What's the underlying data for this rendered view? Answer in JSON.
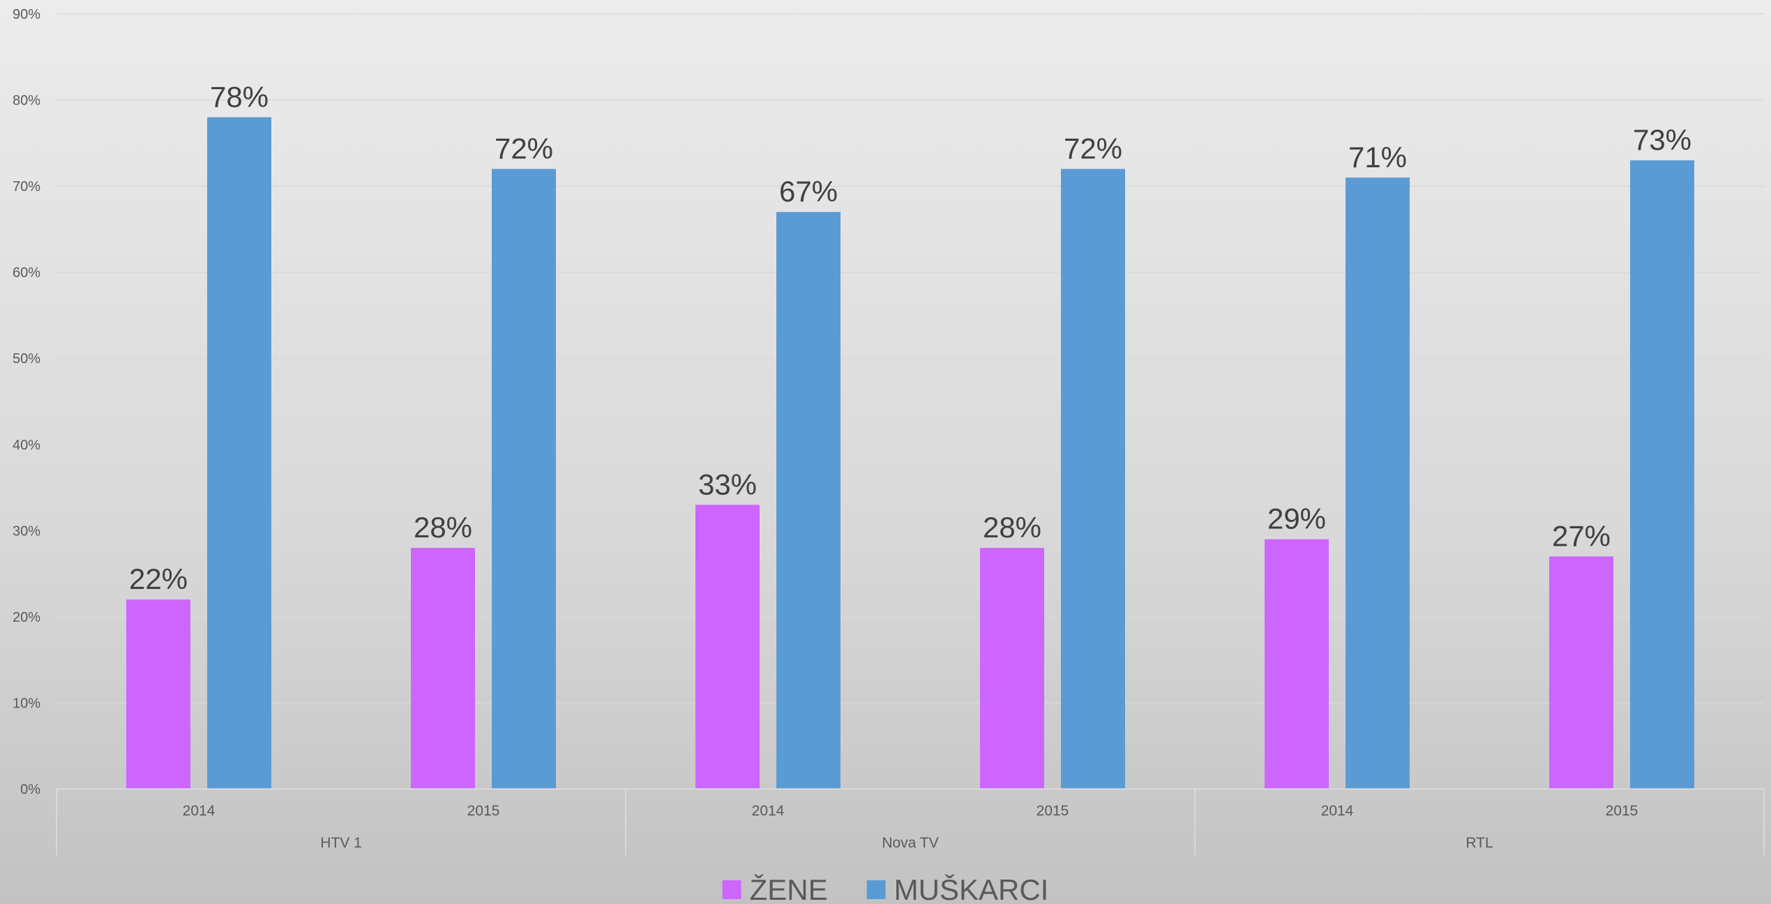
{
  "chart_data": {
    "type": "bar",
    "title": "",
    "xlabel": "",
    "ylabel": "",
    "ylim": [
      0,
      90
    ],
    "yticks": [
      "0%",
      "10%",
      "20%",
      "30%",
      "40%",
      "50%",
      "60%",
      "70%",
      "80%",
      "90%"
    ],
    "grid": true,
    "legend_position": "bottom",
    "groups": [
      {
        "label": "HTV 1",
        "categories": [
          "2014",
          "2015"
        ]
      },
      {
        "label": "Nova TV",
        "categories": [
          "2014",
          "2015"
        ]
      },
      {
        "label": "RTL",
        "categories": [
          "2014",
          "2015"
        ]
      }
    ],
    "categories": [
      "2014",
      "2015",
      "2014",
      "2015",
      "2014",
      "2015"
    ],
    "series": [
      {
        "name": "ŽENE",
        "color": "#cc66ff",
        "values": [
          22,
          28,
          33,
          28,
          29,
          27
        ],
        "labels": [
          "22%",
          "28%",
          "33%",
          "28%",
          "29%",
          "27%"
        ]
      },
      {
        "name": "MUŠKARCI",
        "color": "#5b9bd5",
        "values": [
          78,
          72,
          67,
          72,
          71,
          73
        ],
        "labels": [
          "78%",
          "72%",
          "67%",
          "72%",
          "71%",
          "73%"
        ]
      }
    ]
  }
}
